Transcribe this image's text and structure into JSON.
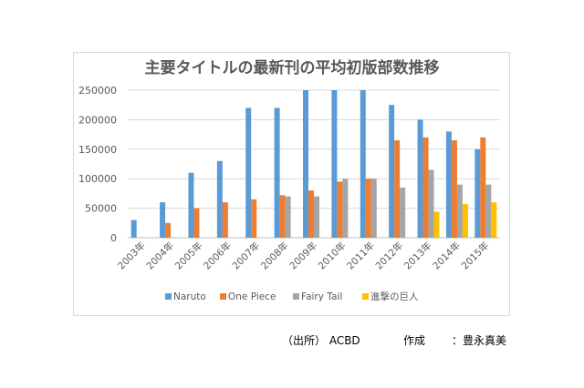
{
  "chart_data": {
    "type": "bar",
    "title": "主要タイトルの最新刊の平均初版部数推移",
    "categories": [
      "2003年",
      "2004年",
      "2005年",
      "2006年",
      "2007年",
      "2008年",
      "2009年",
      "2010年",
      "2011年",
      "2012年",
      "2013年",
      "2014年",
      "2015年"
    ],
    "series": [
      {
        "name": "Naruto",
        "color": "#5b9bd5",
        "values": [
          30000,
          60000,
          110000,
          130000,
          220000,
          220000,
          250000,
          250000,
          250000,
          225000,
          200000,
          180000,
          150000
        ]
      },
      {
        "name": "One Piece",
        "color": "#ed7d31",
        "values": [
          null,
          25000,
          50000,
          60000,
          65000,
          72000,
          80000,
          95000,
          100000,
          165000,
          170000,
          165000,
          170000
        ]
      },
      {
        "name": "Fairy Tail",
        "color": "#a5a5a5",
        "values": [
          null,
          null,
          null,
          null,
          null,
          70000,
          70000,
          100000,
          100000,
          85000,
          115000,
          90000,
          90000
        ]
      },
      {
        "name": "進撃の巨人",
        "color": "#ffc000",
        "values": [
          null,
          null,
          null,
          null,
          null,
          null,
          null,
          null,
          null,
          null,
          44000,
          57000,
          60000
        ]
      }
    ],
    "ylim": [
      0,
      250000
    ],
    "yticks": [
      "0",
      "50000",
      "100000",
      "150000",
      "200000",
      "250000"
    ],
    "grid": true,
    "legend": "bottom"
  },
  "footer": {
    "source": "（出所） ACBD",
    "author_label": "作成",
    "author": "：豊永真美"
  }
}
